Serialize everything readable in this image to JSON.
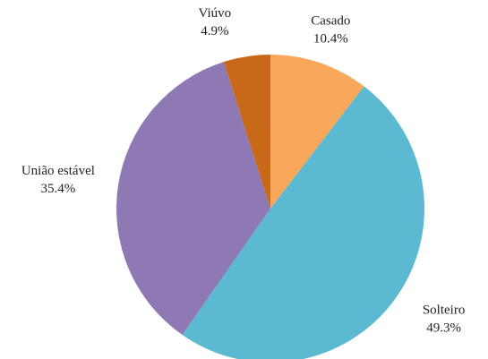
{
  "chart_data": {
    "type": "pie",
    "categories": [
      "Casado",
      "Solteiro",
      "União estável",
      "Viúvo"
    ],
    "values": [
      10.4,
      49.3,
      35.4,
      4.9
    ],
    "value_labels": [
      "10.4%",
      "49.3%",
      "35.4%",
      "4.9%"
    ],
    "colors": [
      "#f9a85b",
      "#5bb9d1",
      "#8e79b5",
      "#c8691a"
    ]
  }
}
